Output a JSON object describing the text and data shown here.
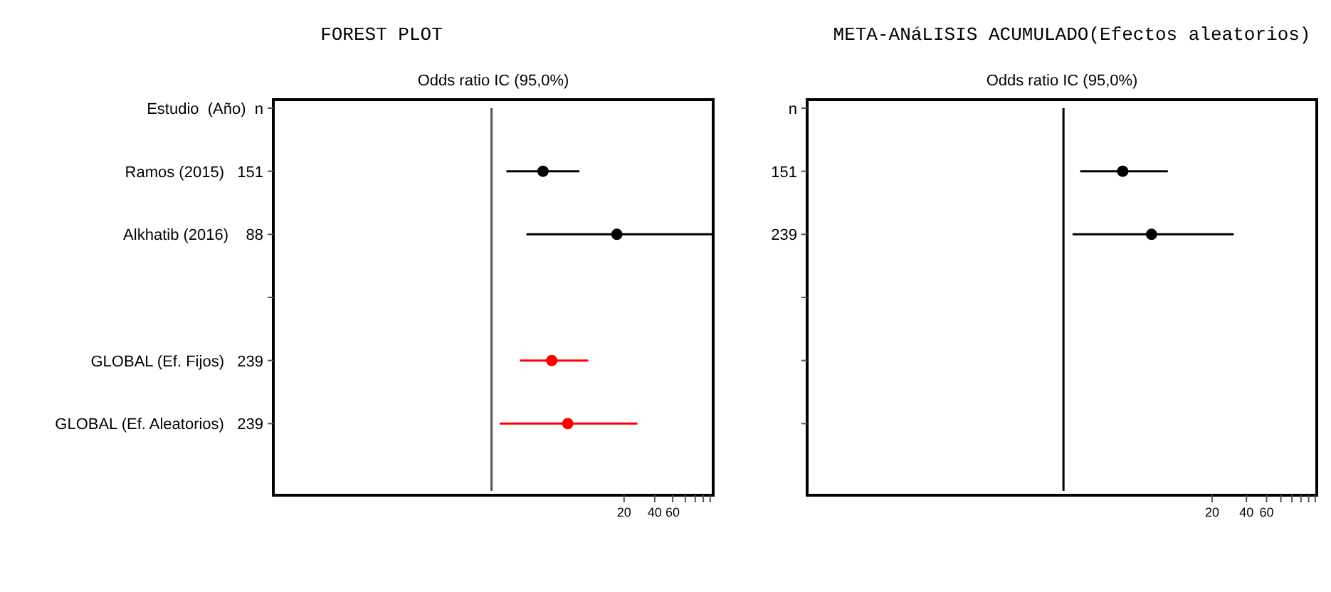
{
  "chart_data": [
    {
      "type": "scatter",
      "title": "FOREST PLOT",
      "subtitle": "Odds ratio IC  (95,0%)",
      "orientation": "horizontal",
      "log": "x",
      "marker": "circle",
      "categories": [
        "Estudio  (Año)  n",
        "Ramos (2015)   151",
        "Alkhatib (2016)    88",
        null,
        "GLOBAL (Ef. Fijos)   239",
        "GLOBAL (Ef. Aleatorios)   239"
      ],
      "xlim": [
        0.0072,
        150
      ],
      "xticks": [
        20,
        40,
        60,
        {
          "value": 80,
          "label": null
        },
        {
          "value": 100,
          "label": null
        },
        {
          "value": 120,
          "label": null
        },
        {
          "value": 140,
          "label": null
        }
      ],
      "ref_lines": [
        {
          "axis": "x",
          "value": 1,
          "color": "#555555"
        }
      ],
      "series": [
        {
          "color": "#000000",
          "values": [
            null,
            3.2,
            17,
            null,
            null,
            null
          ],
          "errors": [
            null,
            [
              1.4,
              7.3
            ],
            [
              2.2,
              150
            ],
            null,
            null,
            null
          ]
        },
        {
          "color": "#ff0000",
          "values": [
            null,
            null,
            null,
            null,
            3.9,
            5.6
          ],
          "errors": [
            null,
            null,
            null,
            null,
            [
              1.9,
              8.9
            ],
            [
              1.2,
              27
            ]
          ]
        }
      ]
    },
    {
      "type": "scatter",
      "title": "META-ANáLISIS ACUMULADO(Efectos aleatorios)",
      "subtitle": "Odds ratio IC  (95,0%)",
      "orientation": "horizontal",
      "log": "x",
      "marker": "circle",
      "categories": [
        "n",
        "151",
        "239",
        null,
        null,
        null
      ],
      "xlim": [
        0.0057,
        165
      ],
      "xticks": [
        20,
        40,
        60,
        {
          "value": 80,
          "label": null
        },
        {
          "value": 100,
          "label": null
        },
        {
          "value": 120,
          "label": null
        },
        {
          "value": 140,
          "label": null
        },
        {
          "value": 160,
          "label": null
        }
      ],
      "ref_lines": [
        {
          "axis": "x",
          "value": 1,
          "color": "#000000"
        }
      ],
      "series": [
        {
          "color": "#000000",
          "values": [
            null,
            3.3,
            5.9,
            null,
            null,
            null
          ],
          "errors": [
            null,
            [
              1.4,
              8.2
            ],
            [
              1.2,
              31
            ],
            null,
            null,
            null
          ]
        }
      ]
    }
  ]
}
